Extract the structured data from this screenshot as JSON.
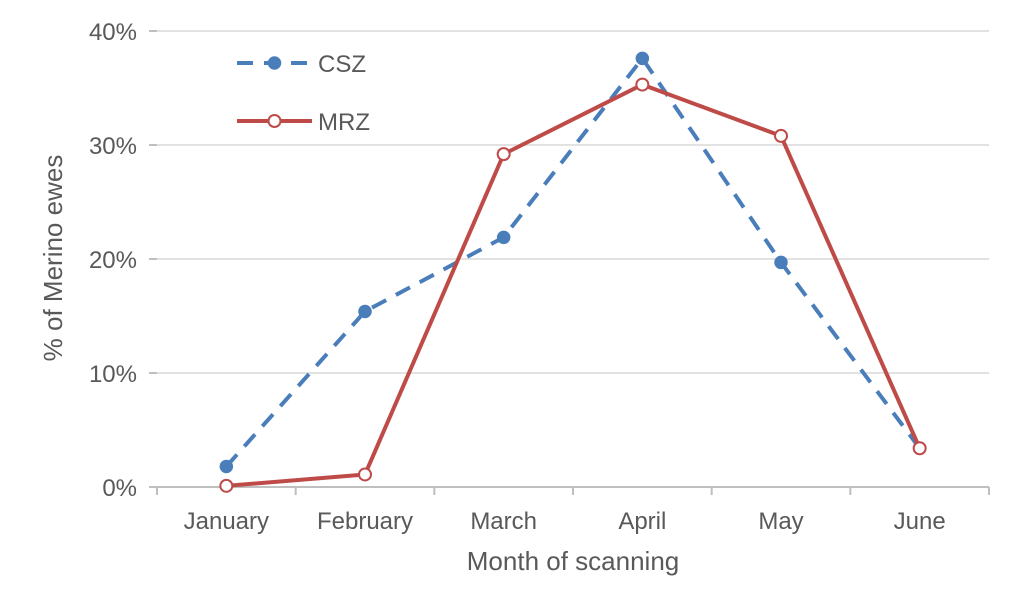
{
  "chart_data": {
    "type": "line",
    "categories": [
      "January",
      "February",
      "March",
      "April",
      "May",
      "June"
    ],
    "series": [
      {
        "name": "CSZ",
        "values": [
          1.8,
          15.4,
          21.9,
          37.6,
          19.7,
          3.4
        ],
        "color": "#4a7ebb",
        "line_style": "dashed",
        "marker": "filled-circle"
      },
      {
        "name": "MRZ",
        "values": [
          0.1,
          1.1,
          29.2,
          35.3,
          30.8,
          3.4
        ],
        "color": "#be4b48",
        "line_style": "solid",
        "marker": "open-circle"
      }
    ],
    "xlabel": "Month of scanning",
    "ylabel": "% of Merino ewes",
    "ylim": [
      0,
      40
    ],
    "yticks": [
      0,
      10,
      20,
      30,
      40
    ],
    "ytick_labels": [
      "0%",
      "10%",
      "20%",
      "30%",
      "40%"
    ],
    "grid": true,
    "legend": "top-left"
  }
}
